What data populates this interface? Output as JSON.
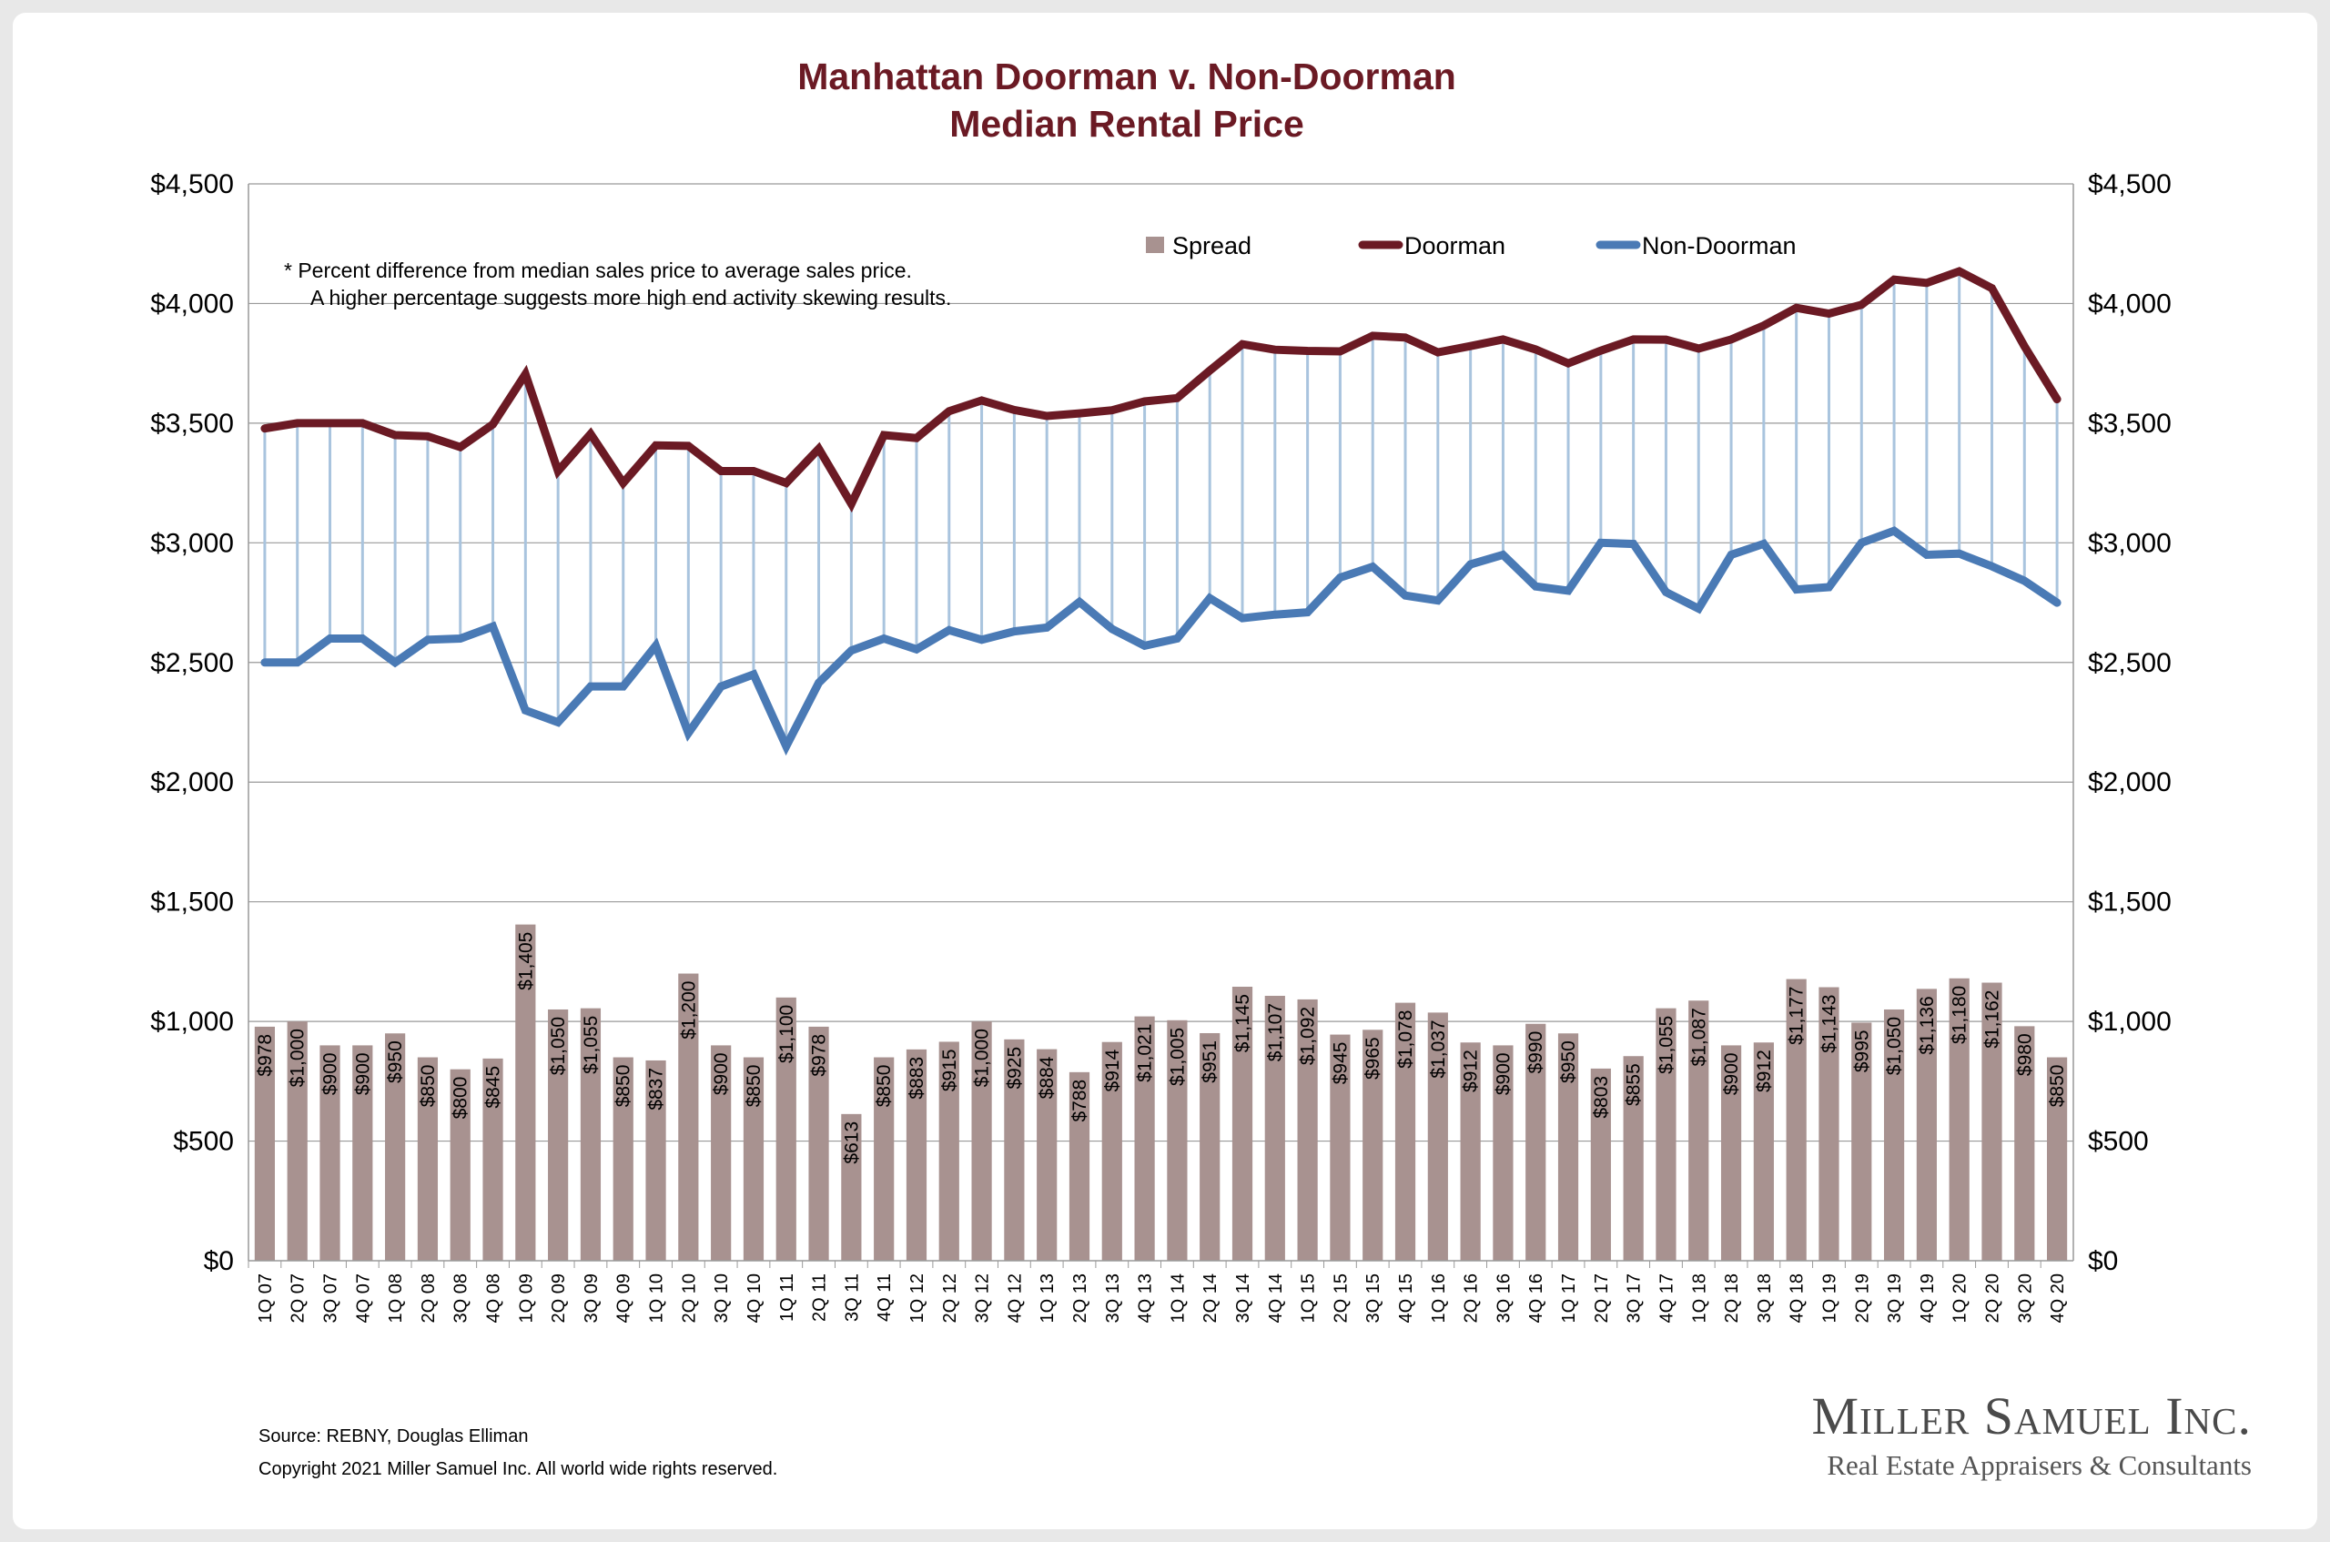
{
  "note": {
    "line1": "*  Percent difference from median sales price to average sales price.",
    "line2": "A higher percentage suggests more high end activity skewing results."
  },
  "footer": {
    "source": "Source: REBNY, Douglas Elliman",
    "copyright": "Copyright 2021 Miller Samuel Inc.  All world wide rights reserved."
  },
  "brand": {
    "name": "Miller Samuel Inc.",
    "tagline": "Real Estate Appraisers & Consultants"
  },
  "colors": {
    "doorman": "#6b1a24",
    "non_doorman": "#4a7ab5",
    "spread": "#a89290",
    "connector": "#a9c4de",
    "title": "#6b1a24",
    "grid": "#999999"
  },
  "chart_data": {
    "type": "bar",
    "title": "Manhattan Doorman v. Non-Doorman",
    "subtitle": "Median Rental Price",
    "ylim": [
      0,
      4500
    ],
    "y_ticks": [
      "$0",
      "$500",
      "$1,000",
      "$1,500",
      "$2,000",
      "$2,500",
      "$3,000",
      "$3,500",
      "$4,000",
      "$4,500"
    ],
    "grid": true,
    "legend_position": "top-center",
    "categories": [
      "1Q 07",
      "2Q 07",
      "3Q 07",
      "4Q 07",
      "1Q 08",
      "2Q 08",
      "3Q 08",
      "4Q 08",
      "1Q 09",
      "2Q 09",
      "3Q 09",
      "4Q 09",
      "1Q 10",
      "2Q 10",
      "3Q 10",
      "4Q 10",
      "1Q 11",
      "2Q 11",
      "3Q 11",
      "4Q 11",
      "1Q 12",
      "2Q 12",
      "3Q 12",
      "4Q 12",
      "1Q 13",
      "2Q 13",
      "3Q 13",
      "4Q 13",
      "1Q 14",
      "2Q 14",
      "3Q 14",
      "4Q 14",
      "1Q 15",
      "2Q 15",
      "3Q 15",
      "4Q 15",
      "1Q 16",
      "2Q 16",
      "3Q 16",
      "4Q 16",
      "1Q 17",
      "2Q 17",
      "3Q 17",
      "4Q 17",
      "1Q 18",
      "2Q 18",
      "3Q 18",
      "4Q 18",
      "1Q 19",
      "2Q 19",
      "3Q 19",
      "4Q 19",
      "1Q 20",
      "2Q 20",
      "3Q 20",
      "4Q 20"
    ],
    "series": [
      {
        "name": "Spread",
        "kind": "bar",
        "values": [
          978,
          1000,
          900,
          900,
          950,
          850,
          800,
          845,
          1405,
          1050,
          1055,
          850,
          837,
          1200,
          900,
          850,
          1100,
          978,
          613,
          850,
          883,
          915,
          1000,
          925,
          884,
          788,
          914,
          1021,
          1005,
          951,
          1145,
          1107,
          1092,
          945,
          965,
          1078,
          1037,
          912,
          900,
          990,
          950,
          803,
          855,
          1055,
          1087,
          900,
          912,
          1177,
          1143,
          995,
          1050,
          1136,
          1180,
          1162,
          980,
          850
        ],
        "labels": [
          "$978",
          "$1,000",
          "$900",
          "$900",
          "$950",
          "$850",
          "$800",
          "$845",
          "$1,405",
          "$1,050",
          "$1,055",
          "$850",
          "$837",
          "$1,200",
          "$900",
          "$850",
          "$1,100",
          "$978",
          "$613",
          "$850",
          "$883",
          "$915",
          "$1,000",
          "$925",
          "$884",
          "$788",
          "$914",
          "$1,021",
          "$1,005",
          "$951",
          "$1,145",
          "$1,107",
          "$1,092",
          "$945",
          "$965",
          "$1,078",
          "$1,037",
          "$912",
          "$900",
          "$990",
          "$950",
          "$803",
          "$855",
          "$1,055",
          "$1,087",
          "$900",
          "$912",
          "$1,177",
          "$1,143",
          "$995",
          "$1,050",
          "$1,136",
          "$1,180",
          "$1,162",
          "$980",
          "$850"
        ]
      },
      {
        "name": "Doorman",
        "kind": "line",
        "values": [
          3478,
          3500,
          3500,
          3500,
          3450,
          3445,
          3400,
          3495,
          3705,
          3300,
          3455,
          3250,
          3407,
          3405,
          3300,
          3300,
          3250,
          3393,
          3163,
          3450,
          3438,
          3550,
          3595,
          3555,
          3530,
          3541,
          3554,
          3591,
          3605,
          3720,
          3830,
          3807,
          3802,
          3800,
          3865,
          3858,
          3796,
          3822,
          3850,
          3808,
          3750,
          3803,
          3850,
          3849,
          3812,
          3850,
          3908,
          3982,
          3958,
          3995,
          4100,
          4086,
          4135,
          4064,
          3821,
          3600
        ]
      },
      {
        "name": "Non-Doorman",
        "kind": "line",
        "values": [
          2500,
          2500,
          2600,
          2600,
          2500,
          2595,
          2600,
          2650,
          2300,
          2250,
          2400,
          2400,
          2570,
          2205,
          2400,
          2450,
          2150,
          2415,
          2550,
          2600,
          2555,
          2635,
          2595,
          2630,
          2646,
          2753,
          2640,
          2570,
          2600,
          2769,
          2685,
          2700,
          2710,
          2855,
          2900,
          2780,
          2759,
          2910,
          2950,
          2818,
          2800,
          3000,
          2995,
          2794,
          2725,
          2950,
          2996,
          2805,
          2815,
          3000,
          3050,
          2950,
          2955,
          2902,
          2841,
          2750
        ]
      }
    ]
  }
}
